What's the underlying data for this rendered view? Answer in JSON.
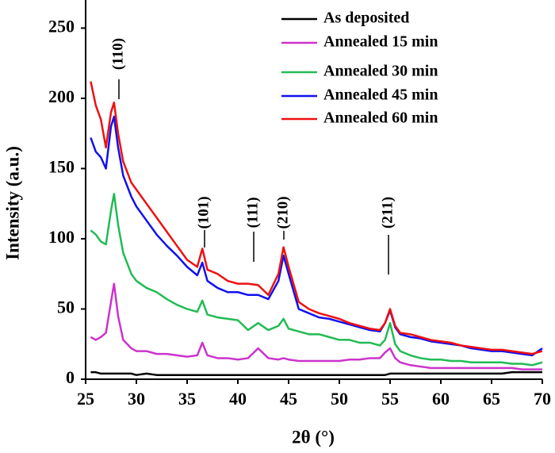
{
  "chart_data": {
    "type": "line",
    "x_label": "2θ (°)",
    "y_label": "Intensity (a.u.)",
    "x": [
      25.5,
      26,
      26.5,
      27,
      27.5,
      27.8,
      28.2,
      28.7,
      29.5,
      30,
      31,
      32,
      33,
      34,
      35,
      36,
      36.5,
      37,
      38,
      39,
      40,
      41,
      42,
      43,
      44,
      44.5,
      45,
      46,
      47,
      48,
      49,
      50,
      51,
      52,
      53,
      54,
      54.5,
      55,
      55.5,
      56,
      57,
      58,
      59,
      60,
      61,
      62,
      63,
      64,
      65,
      66,
      67,
      68,
      69,
      70
    ],
    "series": [
      {
        "name": "As deposited",
        "color": "#000000",
        "values": [
          5,
          5,
          4,
          4,
          4,
          4,
          4,
          4,
          4,
          3,
          4,
          3,
          3,
          3,
          3,
          3,
          3,
          3,
          3,
          3,
          3,
          3,
          3,
          3,
          3,
          3,
          3,
          3,
          3,
          3,
          3,
          3,
          3,
          3,
          3,
          3,
          3,
          4,
          4,
          4,
          4,
          4,
          4,
          4,
          4,
          4,
          4,
          4,
          4,
          4,
          5,
          5,
          5,
          5
        ]
      },
      {
        "name": "Annealed 15 min",
        "color": "#cc33cc",
        "values": [
          30,
          28,
          30,
          33,
          55,
          68,
          45,
          28,
          22,
          20,
          20,
          18,
          18,
          17,
          16,
          17,
          26,
          17,
          15,
          15,
          14,
          15,
          22,
          15,
          14,
          15,
          14,
          13,
          13,
          13,
          13,
          13,
          14,
          14,
          15,
          15,
          19,
          22,
          15,
          12,
          10,
          9,
          8,
          8,
          8,
          8,
          8,
          8,
          8,
          8,
          8,
          7,
          7,
          7
        ]
      },
      {
        "name": "Annealed 30 min",
        "color": "#22bb55",
        "values": [
          106,
          103,
          98,
          96,
          120,
          132,
          110,
          90,
          75,
          70,
          65,
          62,
          57,
          53,
          50,
          48,
          56,
          46,
          44,
          43,
          42,
          35,
          40,
          35,
          38,
          43,
          36,
          34,
          32,
          32,
          30,
          28,
          28,
          26,
          26,
          24,
          28,
          40,
          25,
          20,
          17,
          15,
          14,
          14,
          13,
          13,
          12,
          12,
          12,
          12,
          11,
          11,
          10,
          12
        ]
      },
      {
        "name": "Annealed 45 min",
        "color": "#1111ee",
        "values": [
          172,
          162,
          158,
          150,
          180,
          187,
          165,
          145,
          130,
          123,
          113,
          103,
          95,
          88,
          80,
          74,
          83,
          70,
          65,
          62,
          62,
          60,
          60,
          57,
          70,
          88,
          75,
          50,
          47,
          44,
          43,
          41,
          39,
          37,
          35,
          34,
          40,
          49,
          37,
          32,
          30,
          29,
          27,
          26,
          25,
          24,
          22,
          21,
          20,
          20,
          19,
          18,
          17,
          22
        ]
      },
      {
        "name": "Annealed 60 min",
        "color": "#ee1111",
        "values": [
          212,
          195,
          185,
          165,
          190,
          197,
          175,
          155,
          140,
          135,
          125,
          115,
          105,
          95,
          85,
          80,
          93,
          78,
          75,
          70,
          68,
          68,
          67,
          60,
          75,
          94,
          80,
          55,
          50,
          47,
          45,
          43,
          40,
          38,
          36,
          35,
          40,
          50,
          38,
          33,
          32,
          30,
          28,
          27,
          26,
          24,
          23,
          22,
          21,
          21,
          20,
          19,
          18,
          20
        ]
      }
    ],
    "xlim": [
      25,
      70
    ],
    "xticks": [
      25,
      30,
      35,
      40,
      45,
      50,
      55,
      60,
      65,
      70
    ],
    "ylim": [
      0,
      270
    ],
    "yticks": [
      0,
      50,
      100,
      150,
      200,
      250
    ],
    "annotations": [
      "(110)",
      "(101)",
      "(111)",
      "(210)",
      "(211)"
    ]
  }
}
